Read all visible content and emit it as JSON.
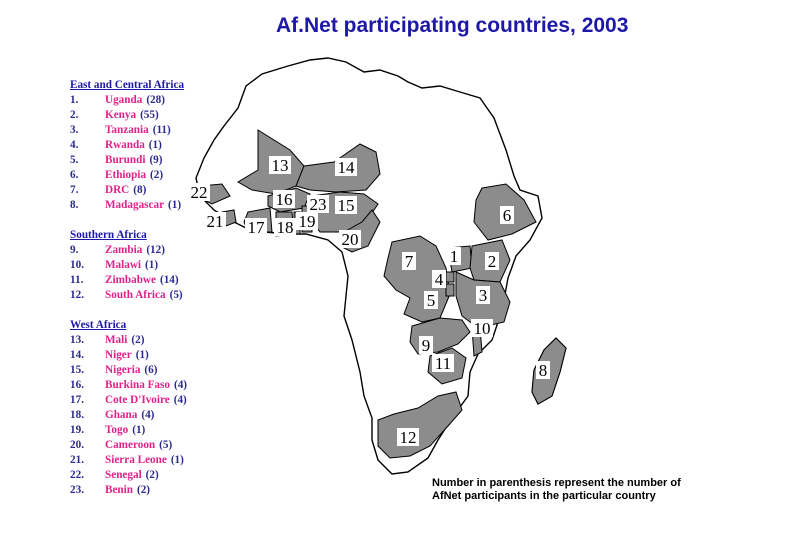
{
  "title": "Af.Net participating countries, 2003",
  "legend": {
    "sections": [
      {
        "heading": "East and Central Africa",
        "entries": [
          {
            "num": "1.",
            "name": "Uganda",
            "count": "(28)"
          },
          {
            "num": "2.",
            "name": "Kenya",
            "count": "(55)"
          },
          {
            "num": "3.",
            "name": "Tanzania",
            "count": "(11)"
          },
          {
            "num": "4.",
            "name": "Rwanda",
            "count": "(1)"
          },
          {
            "num": "5.",
            "name": "Burundi",
            "count": "(9)"
          },
          {
            "num": "6.",
            "name": "Ethiopia",
            "count": "(2)"
          },
          {
            "num": "7.",
            "name": "DRC",
            "count": "(8)"
          },
          {
            "num": "8.",
            "name": "Madagascar",
            "count": "(1)"
          }
        ]
      },
      {
        "heading": "Southern Africa",
        "entries": [
          {
            "num": "9.",
            "name": "Zambia",
            "count": "(12)"
          },
          {
            "num": "10.",
            "name": "Malawi",
            "count": "(1)"
          },
          {
            "num": "11.",
            "name": "Zimbabwe",
            "count": "(14)"
          },
          {
            "num": "12.",
            "name": "South Africa",
            "count": "(5)"
          }
        ]
      },
      {
        "heading": "West Africa",
        "entries": [
          {
            "num": "13.",
            "name": "Mali",
            "count": "(2)"
          },
          {
            "num": "14.",
            "name": "Niger",
            "count": "(1)"
          },
          {
            "num": "15.",
            "name": "Nigeria",
            "count": "(6)"
          },
          {
            "num": "16.",
            "name": "Burkina Faso",
            "count": "(4)"
          },
          {
            "num": "17.",
            "name": "Cote D'Ivoire",
            "count": "(4)"
          },
          {
            "num": "18.",
            "name": "Ghana",
            "count": "(4)"
          },
          {
            "num": "19.",
            "name": "Togo",
            "count": "(1)"
          },
          {
            "num": "20.",
            "name": "Cameroon",
            "count": "(5)"
          },
          {
            "num": "21.",
            "name": "Sierra Leone",
            "count": "(1)"
          },
          {
            "num": "22.",
            "name": "Senegal",
            "count": "(2)"
          },
          {
            "num": "23.",
            "name": "Benin",
            "count": "(2)"
          }
        ]
      }
    ]
  },
  "map_labels": [
    "1",
    "2",
    "3",
    "4",
    "5",
    "6",
    "7",
    "8",
    "9",
    "10",
    "11",
    "12",
    "13",
    "14",
    "15",
    "16",
    "17",
    "18",
    "19",
    "20",
    "21",
    "22",
    "23"
  ],
  "note": {
    "line1": "Number in parenthesis represent the number of",
    "line2": "AfNet participants in the particular country"
  },
  "colors": {
    "title": "#1d18a8",
    "country_name": "#e0218a",
    "legend_number": "#2b2b8f",
    "participating_fill": "#8c8c8c",
    "land_fill": "#ffffff",
    "border": "#000000"
  }
}
